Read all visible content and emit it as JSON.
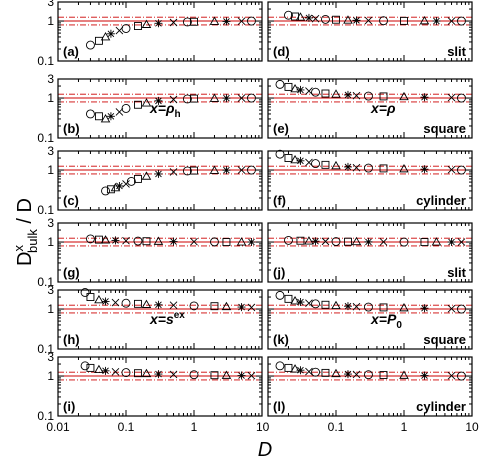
{
  "chart_data": {
    "type": "scatter",
    "layout": "6 rows x 2 columns of panels sharing axes",
    "x_scale": "log",
    "y_scale": "log",
    "xlim": [
      0.01,
      10
    ],
    "ylim": [
      0.1,
      3
    ],
    "x_ticks": [
      "0.01",
      "0.1",
      "1",
      "10"
    ],
    "y_ticks": [
      "0.1",
      "1",
      "3"
    ],
    "reference_lines": {
      "center": 1.0,
      "band": [
        0.8,
        1.25
      ],
      "color": "#cc0000"
    },
    "xlabel": "D",
    "ylabel": {
      "main": "D",
      "superscript": "x",
      "subscript": "bulk",
      "suffix": " / D"
    },
    "marker_styles": [
      "circle",
      "square",
      "triangle",
      "star",
      "x"
    ],
    "panels": [
      {
        "id": "a",
        "label": "(a)",
        "geometry": "",
        "quantity": "",
        "points": {
          "x": [
            0.03,
            0.04,
            0.05,
            0.06,
            0.08,
            0.1,
            0.15,
            0.2,
            0.3,
            0.5,
            0.8,
            1,
            2,
            3,
            5,
            7
          ],
          "y": [
            0.25,
            0.32,
            0.4,
            0.48,
            0.58,
            0.65,
            0.75,
            0.82,
            0.88,
            0.92,
            0.95,
            0.96,
            0.98,
            0.98,
            0.99,
            1.0
          ]
        }
      },
      {
        "id": "b",
        "label": "(b)",
        "geometry": "",
        "quantity": "x=ρh",
        "points": {
          "x": [
            0.03,
            0.04,
            0.05,
            0.06,
            0.08,
            0.1,
            0.15,
            0.2,
            0.3,
            0.5,
            0.8,
            1,
            2,
            3,
            5,
            7
          ],
          "y": [
            0.4,
            0.35,
            0.3,
            0.35,
            0.45,
            0.55,
            0.68,
            0.75,
            0.85,
            0.92,
            0.95,
            0.97,
            0.98,
            0.99,
            1.0,
            1.0
          ]
        }
      },
      {
        "id": "c",
        "label": "(c)",
        "geometry": "",
        "quantity": "",
        "points": {
          "x": [
            0.05,
            0.06,
            0.07,
            0.08,
            0.1,
            0.12,
            0.15,
            0.2,
            0.3,
            0.5,
            0.8,
            1,
            2,
            3,
            5,
            7
          ],
          "y": [
            0.3,
            0.33,
            0.36,
            0.4,
            0.45,
            0.52,
            0.6,
            0.7,
            0.8,
            0.9,
            0.95,
            0.97,
            0.98,
            0.99,
            1.0,
            1.0
          ]
        }
      },
      {
        "id": "d",
        "label": "(d)",
        "geometry": "slit",
        "quantity": "",
        "points": {
          "x": [
            0.02,
            0.025,
            0.03,
            0.04,
            0.05,
            0.07,
            0.1,
            0.15,
            0.2,
            0.3,
            0.5,
            1,
            2,
            3,
            5,
            7
          ],
          "y": [
            1.4,
            1.3,
            1.25,
            1.2,
            1.15,
            1.1,
            1.08,
            1.05,
            1.04,
            1.03,
            1.02,
            1.01,
            1.01,
            1.0,
            1.0,
            1.0
          ]
        }
      },
      {
        "id": "e",
        "label": "(e)",
        "geometry": "square",
        "quantity": "x=ρ",
        "points": {
          "x": [
            0.015,
            0.02,
            0.025,
            0.03,
            0.04,
            0.05,
            0.07,
            0.1,
            0.15,
            0.2,
            0.3,
            0.5,
            1,
            2,
            5,
            7
          ],
          "y": [
            2.2,
            1.9,
            1.7,
            1.6,
            1.5,
            1.4,
            1.3,
            1.25,
            1.2,
            1.15,
            1.12,
            1.1,
            1.08,
            1.05,
            1.03,
            1.0
          ]
        }
      },
      {
        "id": "f",
        "label": "(f)",
        "geometry": "cylinder",
        "quantity": "",
        "points": {
          "x": [
            0.015,
            0.02,
            0.025,
            0.03,
            0.04,
            0.05,
            0.07,
            0.1,
            0.15,
            0.2,
            0.3,
            0.5,
            1,
            2,
            5,
            7
          ],
          "y": [
            2.5,
            2.0,
            1.8,
            1.7,
            1.55,
            1.45,
            1.35,
            1.28,
            1.2,
            1.15,
            1.12,
            1.1,
            1.07,
            1.05,
            1.02,
            1.0
          ]
        }
      },
      {
        "id": "g",
        "label": "(g)",
        "geometry": "",
        "quantity": "",
        "points": {
          "x": [
            0.03,
            0.04,
            0.05,
            0.07,
            0.1,
            0.15,
            0.2,
            0.3,
            0.5,
            1,
            2,
            3,
            5,
            7
          ],
          "y": [
            1.2,
            1.15,
            1.12,
            1.1,
            1.08,
            1.06,
            1.05,
            1.04,
            1.03,
            1.02,
            1.01,
            1.0,
            1.0,
            1.0
          ]
        }
      },
      {
        "id": "h",
        "label": "(h)",
        "geometry": "",
        "quantity": "x=sex",
        "points": {
          "x": [
            0.025,
            0.03,
            0.04,
            0.05,
            0.07,
            0.1,
            0.15,
            0.2,
            0.3,
            0.5,
            1,
            2,
            3,
            5,
            7
          ],
          "y": [
            2.6,
            2.0,
            1.7,
            1.55,
            1.45,
            1.4,
            1.35,
            1.3,
            1.28,
            1.25,
            1.2,
            1.18,
            1.15,
            1.12,
            1.1
          ]
        }
      },
      {
        "id": "i",
        "label": "(i)",
        "geometry": "",
        "quantity": "",
        "points": {
          "x": [
            0.025,
            0.03,
            0.04,
            0.05,
            0.07,
            0.1,
            0.15,
            0.2,
            0.3,
            0.5,
            1,
            2,
            3,
            5,
            7
          ],
          "y": [
            1.8,
            1.6,
            1.45,
            1.35,
            1.28,
            1.22,
            1.18,
            1.15,
            1.12,
            1.1,
            1.08,
            1.05,
            1.04,
            1.03,
            1.02
          ]
        }
      },
      {
        "id": "j",
        "label": "(j)",
        "geometry": "slit",
        "quantity": "",
        "points": {
          "x": [
            0.02,
            0.03,
            0.04,
            0.05,
            0.07,
            0.1,
            0.15,
            0.2,
            0.3,
            0.5,
            1,
            2,
            3,
            5,
            7
          ],
          "y": [
            1.1,
            1.08,
            1.06,
            1.05,
            1.04,
            1.03,
            1.02,
            1.02,
            1.01,
            1.01,
            1.0,
            1.0,
            1.0,
            1.0,
            1.0
          ]
        }
      },
      {
        "id": "k",
        "label": "(k)",
        "geometry": "square",
        "quantity": "x=P0",
        "points": {
          "x": [
            0.015,
            0.02,
            0.025,
            0.03,
            0.04,
            0.05,
            0.07,
            0.1,
            0.15,
            0.2,
            0.3,
            0.5,
            1,
            2,
            5,
            7
          ],
          "y": [
            2.2,
            1.8,
            1.6,
            1.5,
            1.4,
            1.35,
            1.28,
            1.22,
            1.18,
            1.15,
            1.12,
            1.1,
            1.07,
            1.05,
            1.02,
            1.0
          ]
        }
      },
      {
        "id": "l",
        "label": "(l)",
        "geometry": "cylinder",
        "quantity": "",
        "points": {
          "x": [
            0.015,
            0.02,
            0.025,
            0.03,
            0.04,
            0.05,
            0.07,
            0.1,
            0.15,
            0.2,
            0.3,
            0.5,
            1,
            2,
            5,
            7
          ],
          "y": [
            1.8,
            1.6,
            1.5,
            1.4,
            1.3,
            1.25,
            1.2,
            1.15,
            1.12,
            1.1,
            1.08,
            1.06,
            1.04,
            1.03,
            1.02,
            1.0
          ]
        }
      }
    ]
  }
}
